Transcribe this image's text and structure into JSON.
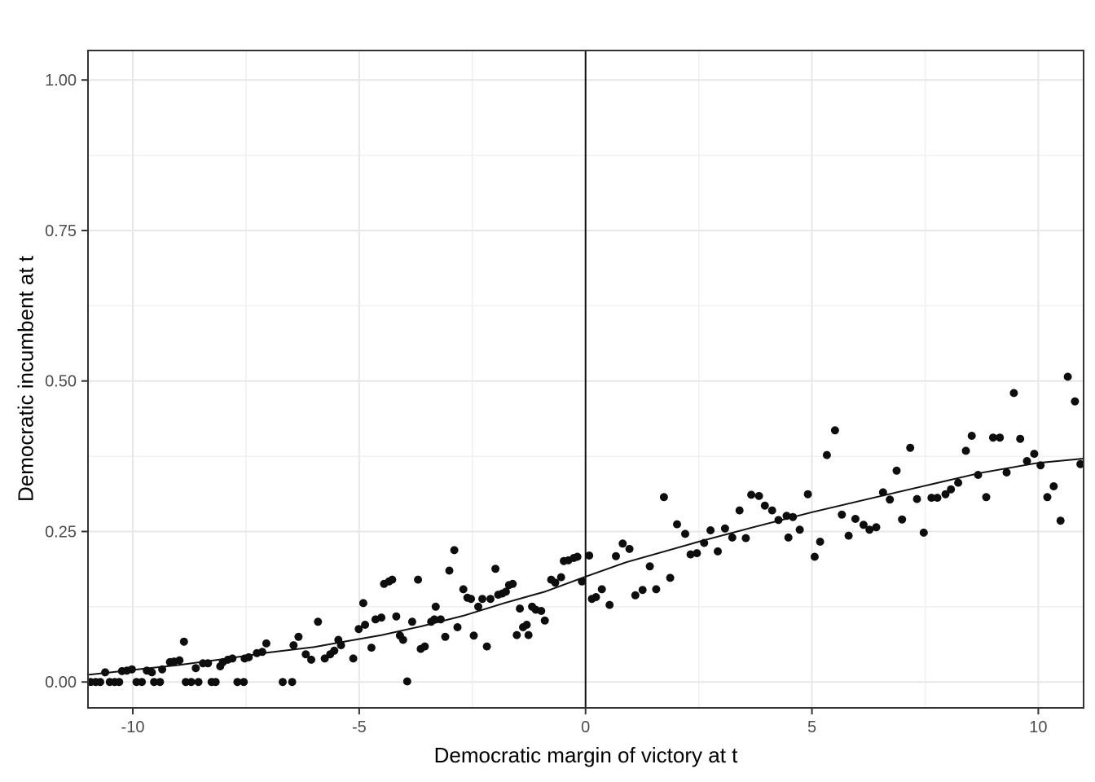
{
  "figure": {
    "kind": "ggplot-style regression discontinuity scatter plot",
    "xlabel": "Democratic margin of victory at t",
    "ylabel": "Democratic incumbent at t"
  },
  "chart_data": {
    "type": "scatter",
    "title": "",
    "xlabel": "Democratic margin of victory at t",
    "ylabel": "Democratic incumbent at t",
    "xlim": [
      -10.99,
      11.0
    ],
    "ylim": [
      -0.043,
      1.049
    ],
    "x_ticks": [
      -10,
      -5,
      0,
      5,
      10
    ],
    "x_tick_labels": [
      "-10",
      "-5",
      "0",
      "5",
      "10"
    ],
    "x_minor_ticks": [
      -7.5,
      -2.5,
      2.5,
      7.5
    ],
    "y_ticks": [
      0.0,
      0.25,
      0.5,
      0.75,
      1.0
    ],
    "y_tick_labels": [
      "0.00",
      "0.25",
      "0.50",
      "0.75",
      "1.00"
    ],
    "y_minor_ticks": [
      0.125,
      0.375,
      0.625,
      0.875
    ],
    "grid": "major+minor",
    "legend_position": "none",
    "cutoff_line_x": 0,
    "point_radius_px": 5,
    "colors": {
      "point": "#0d0d0d",
      "smooth_curve": "#111111",
      "cutoff_line": "#111111",
      "grid_major": "#e7e7e7",
      "grid_minor": "#f0f0f0",
      "panel_border": "#333333",
      "tick_mark": "#333333",
      "tick_label": "#4d4d4d",
      "axis_title": "#000000",
      "background": "#ffffff"
    },
    "points": [
      [
        -10.93,
        0
      ],
      [
        -10.82,
        0
      ],
      [
        -10.72,
        0
      ],
      [
        -10.61,
        0.016
      ],
      [
        -10.51,
        0
      ],
      [
        -10.4,
        0
      ],
      [
        -10.3,
        0
      ],
      [
        -10.24,
        0.018
      ],
      [
        -10.13,
        0.019
      ],
      [
        -10.02,
        0.021
      ],
      [
        -9.92,
        0
      ],
      [
        -9.8,
        0
      ],
      [
        -9.69,
        0.019
      ],
      [
        -9.58,
        0.016
      ],
      [
        -9.53,
        0
      ],
      [
        -9.4,
        0
      ],
      [
        -9.35,
        0.021
      ],
      [
        -9.18,
        0.033
      ],
      [
        -9.09,
        0.034
      ],
      [
        -8.97,
        0.036
      ],
      [
        -8.87,
        0.067
      ],
      [
        -8.83,
        0
      ],
      [
        -8.71,
        0
      ],
      [
        -8.61,
        0.023
      ],
      [
        -8.55,
        0
      ],
      [
        -8.45,
        0.031
      ],
      [
        -8.34,
        0.031
      ],
      [
        -8.26,
        0
      ],
      [
        -8.17,
        0
      ],
      [
        -8.07,
        0.026
      ],
      [
        -8.01,
        0.033
      ],
      [
        -7.9,
        0.037
      ],
      [
        -7.8,
        0.039
      ],
      [
        -7.69,
        0
      ],
      [
        -7.55,
        0
      ],
      [
        -7.53,
        0.039
      ],
      [
        -7.44,
        0.041
      ],
      [
        -7.26,
        0.048
      ],
      [
        -7.14,
        0.05
      ],
      [
        -7.05,
        0.064
      ],
      [
        -6.69,
        0
      ],
      [
        -6.48,
        0
      ],
      [
        -6.45,
        0.061
      ],
      [
        -6.34,
        0.075
      ],
      [
        -6.18,
        0.046
      ],
      [
        -6.06,
        0.037
      ],
      [
        -5.91,
        0.1
      ],
      [
        -5.76,
        0.039
      ],
      [
        -5.64,
        0.046
      ],
      [
        -5.55,
        0.052
      ],
      [
        -5.46,
        0.07
      ],
      [
        -5.4,
        0.061
      ],
      [
        -5.13,
        0.039
      ],
      [
        -5.01,
        0.088
      ],
      [
        -4.91,
        0.131
      ],
      [
        -4.87,
        0.095
      ],
      [
        -4.73,
        0.057
      ],
      [
        -4.64,
        0.104
      ],
      [
        -4.51,
        0.107
      ],
      [
        -4.45,
        0.163
      ],
      [
        -4.34,
        0.167
      ],
      [
        -4.27,
        0.17
      ],
      [
        -4.18,
        0.109
      ],
      [
        -4.1,
        0.077
      ],
      [
        -4.03,
        0.07
      ],
      [
        -3.94,
        0.001
      ],
      [
        -3.83,
        0.1
      ],
      [
        -3.7,
        0.17
      ],
      [
        -3.64,
        0.055
      ],
      [
        -3.55,
        0.059
      ],
      [
        -3.41,
        0.1
      ],
      [
        -3.34,
        0.104
      ],
      [
        -3.31,
        0.125
      ],
      [
        -3.2,
        0.104
      ],
      [
        -3.1,
        0.075
      ],
      [
        -3.01,
        0.185
      ],
      [
        -2.9,
        0.219
      ],
      [
        -2.83,
        0.091
      ],
      [
        -2.7,
        0.154
      ],
      [
        -2.61,
        0.14
      ],
      [
        -2.53,
        0.138
      ],
      [
        -2.47,
        0.077
      ],
      [
        -2.37,
        0.125
      ],
      [
        -2.28,
        0.138
      ],
      [
        -2.18,
        0.059
      ],
      [
        -2.1,
        0.138
      ],
      [
        -1.99,
        0.188
      ],
      [
        -1.93,
        0.145
      ],
      [
        -1.84,
        0.147
      ],
      [
        -1.76,
        0.15
      ],
      [
        -1.69,
        0.161
      ],
      [
        -1.61,
        0.163
      ],
      [
        -1.52,
        0.078
      ],
      [
        -1.45,
        0.122
      ],
      [
        -1.38,
        0.091
      ],
      [
        -1.3,
        0.095
      ],
      [
        -1.26,
        0.078
      ],
      [
        -1.18,
        0.125
      ],
      [
        -1.1,
        0.12
      ],
      [
        -0.98,
        0.118
      ],
      [
        -0.9,
        0.102
      ],
      [
        -0.76,
        0.17
      ],
      [
        -0.67,
        0.165
      ],
      [
        -0.54,
        0.174
      ],
      [
        -0.48,
        0.201
      ],
      [
        -0.38,
        0.202
      ],
      [
        -0.26,
        0.206
      ],
      [
        -0.18,
        0.208
      ],
      [
        -0.08,
        0.167
      ],
      [
        0.08,
        0.21
      ],
      [
        0.14,
        0.138
      ],
      [
        0.23,
        0.141
      ],
      [
        0.36,
        0.154
      ],
      [
        0.53,
        0.128
      ],
      [
        0.67,
        0.209
      ],
      [
        0.82,
        0.23
      ],
      [
        0.97,
        0.221
      ],
      [
        1.1,
        0.144
      ],
      [
        1.26,
        0.153
      ],
      [
        1.42,
        0.192
      ],
      [
        1.56,
        0.154
      ],
      [
        1.73,
        0.307
      ],
      [
        1.87,
        0.173
      ],
      [
        2.02,
        0.262
      ],
      [
        2.2,
        0.246
      ],
      [
        2.32,
        0.212
      ],
      [
        2.46,
        0.214
      ],
      [
        2.62,
        0.231
      ],
      [
        2.76,
        0.252
      ],
      [
        2.92,
        0.217
      ],
      [
        3.08,
        0.255
      ],
      [
        3.24,
        0.24
      ],
      [
        3.4,
        0.285
      ],
      [
        3.54,
        0.239
      ],
      [
        3.66,
        0.311
      ],
      [
        3.83,
        0.309
      ],
      [
        3.96,
        0.293
      ],
      [
        4.12,
        0.285
      ],
      [
        4.26,
        0.269
      ],
      [
        4.44,
        0.276
      ],
      [
        4.48,
        0.24
      ],
      [
        4.58,
        0.274
      ],
      [
        4.73,
        0.253
      ],
      [
        4.91,
        0.312
      ],
      [
        5.06,
        0.208
      ],
      [
        5.18,
        0.233
      ],
      [
        5.33,
        0.377
      ],
      [
        5.51,
        0.418
      ],
      [
        5.66,
        0.278
      ],
      [
        5.81,
        0.243
      ],
      [
        5.96,
        0.271
      ],
      [
        6.14,
        0.261
      ],
      [
        6.27,
        0.253
      ],
      [
        6.42,
        0.257
      ],
      [
        6.57,
        0.315
      ],
      [
        6.72,
        0.303
      ],
      [
        6.87,
        0.351
      ],
      [
        6.99,
        0.27
      ],
      [
        7.17,
        0.389
      ],
      [
        7.32,
        0.304
      ],
      [
        7.47,
        0.248
      ],
      [
        7.64,
        0.306
      ],
      [
        7.77,
        0.306
      ],
      [
        7.95,
        0.312
      ],
      [
        8.07,
        0.32
      ],
      [
        8.23,
        0.331
      ],
      [
        8.4,
        0.384
      ],
      [
        8.53,
        0.409
      ],
      [
        8.67,
        0.344
      ],
      [
        8.85,
        0.307
      ],
      [
        9.0,
        0.406
      ],
      [
        9.15,
        0.406
      ],
      [
        9.3,
        0.348
      ],
      [
        9.46,
        0.48
      ],
      [
        9.6,
        0.404
      ],
      [
        9.75,
        0.367
      ],
      [
        9.91,
        0.379
      ],
      [
        10.05,
        0.36
      ],
      [
        10.2,
        0.307
      ],
      [
        10.34,
        0.325
      ],
      [
        10.49,
        0.268
      ],
      [
        10.65,
        0.507
      ],
      [
        10.81,
        0.466
      ],
      [
        10.93,
        0.362
      ]
    ],
    "smooth_curve": [
      [
        -10.99,
        0.012
      ],
      [
        -10,
        0.02
      ],
      [
        -9,
        0.028
      ],
      [
        -8,
        0.038
      ],
      [
        -7,
        0.049
      ],
      [
        -6,
        0.058
      ],
      [
        -5.4,
        0.066
      ],
      [
        -4.5,
        0.078
      ],
      [
        -3.6,
        0.093
      ],
      [
        -2.7,
        0.11
      ],
      [
        -1.8,
        0.131
      ],
      [
        -0.9,
        0.15
      ],
      [
        0,
        0.175
      ],
      [
        0.9,
        0.199
      ],
      [
        1.8,
        0.218
      ],
      [
        2.5,
        0.233
      ],
      [
        3.7,
        0.257
      ],
      [
        5,
        0.282
      ],
      [
        6.3,
        0.305
      ],
      [
        7.5,
        0.326
      ],
      [
        8.7,
        0.347
      ],
      [
        10,
        0.364
      ],
      [
        11,
        0.371
      ]
    ]
  }
}
